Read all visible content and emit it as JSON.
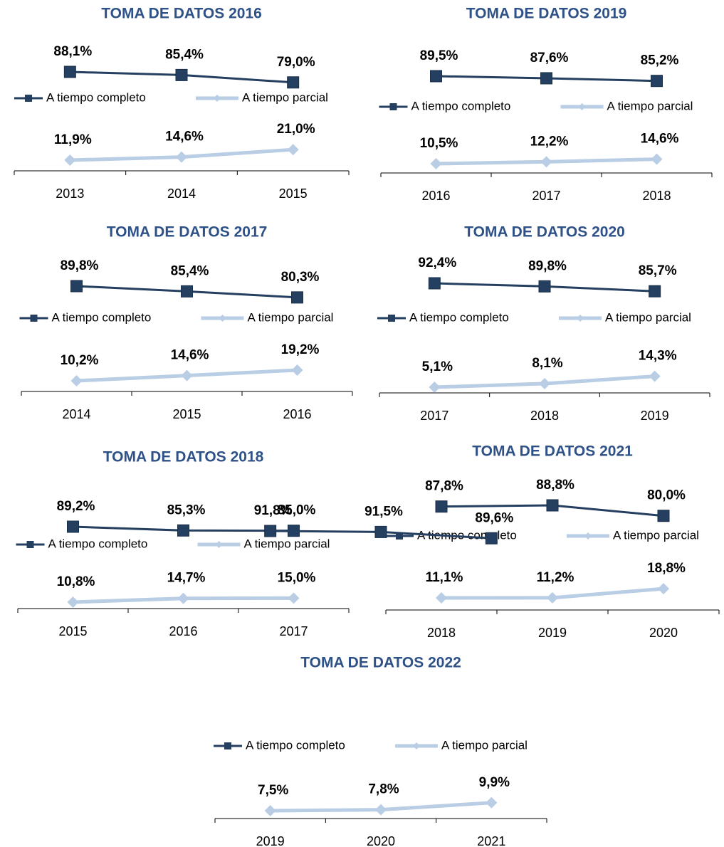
{
  "chart_data": [
    {
      "type": "line",
      "title": "TOMA DE DATOS 2016",
      "categories": [
        "2013",
        "2014",
        "2015"
      ],
      "series": [
        {
          "name": "A tiempo completo",
          "color": "#243f60",
          "marker": "square",
          "values": [
            88.1,
            85.4,
            79.0
          ],
          "value_labels": [
            "88,1%",
            "85,4%",
            "79,0%"
          ]
        },
        {
          "name": "A tiempo parcial",
          "color": "#b9cde5",
          "marker": "diamond",
          "values": [
            11.9,
            14.6,
            21.0
          ],
          "value_labels": [
            "11,9%",
            "14,6%",
            "21,0%"
          ]
        }
      ]
    },
    {
      "type": "line",
      "title": "TOMA DE DATOS 2019",
      "categories": [
        "2016",
        "2017",
        "2018"
      ],
      "series": [
        {
          "name": "A tiempo completo",
          "color": "#243f60",
          "marker": "square",
          "values": [
            89.5,
            87.6,
            85.2
          ],
          "value_labels": [
            "89,5%",
            "87,6%",
            "85,2%"
          ]
        },
        {
          "name": "A tiempo parcial",
          "color": "#b9cde5",
          "marker": "diamond",
          "values": [
            10.5,
            12.2,
            14.6
          ],
          "value_labels": [
            "10,5%",
            "12,2%",
            "14,6%"
          ]
        }
      ]
    },
    {
      "type": "line",
      "title": "TOMA DE DATOS 2017",
      "categories": [
        "2014",
        "2015",
        "2016"
      ],
      "series": [
        {
          "name": "A tiempo completo",
          "color": "#243f60",
          "marker": "square",
          "values": [
            89.8,
            85.4,
            80.3
          ],
          "value_labels": [
            "89,8%",
            "85,4%",
            "80,3%"
          ]
        },
        {
          "name": "A tiempo parcial",
          "color": "#b9cde5",
          "marker": "diamond",
          "values": [
            10.2,
            14.6,
            19.2
          ],
          "value_labels": [
            "10,2%",
            "14,6%",
            "19,2%"
          ]
        }
      ]
    },
    {
      "type": "line",
      "title": "TOMA DE DATOS 2020",
      "categories": [
        "2017",
        "2018",
        "2019"
      ],
      "series": [
        {
          "name": "A tiempo completo",
          "color": "#243f60",
          "marker": "square",
          "values": [
            92.4,
            89.8,
            85.7
          ],
          "value_labels": [
            "92,4%",
            "89,8%",
            "85,7%"
          ]
        },
        {
          "name": "A tiempo parcial",
          "color": "#b9cde5",
          "marker": "diamond",
          "values": [
            5.1,
            8.1,
            14.3
          ],
          "value_labels": [
            "5,1%",
            "8,1%",
            "14,3%"
          ]
        }
      ]
    },
    {
      "type": "line",
      "title": "TOMA DE DATOS 2018",
      "categories": [
        "2015",
        "2016",
        "2017"
      ],
      "series": [
        {
          "name": "A tiempo completo",
          "color": "#243f60",
          "marker": "square",
          "values": [
            89.2,
            85.3,
            85.0
          ],
          "value_labels": [
            "89,2%",
            "85,3%",
            "85,0%"
          ]
        },
        {
          "name": "A tiempo parcial",
          "color": "#b9cde5",
          "marker": "diamond",
          "values": [
            10.8,
            14.7,
            15.0
          ],
          "value_labels": [
            "10,8%",
            "14,7%",
            "15,0%"
          ]
        }
      ]
    },
    {
      "type": "line",
      "title": "TOMA DE DATOS 2021",
      "categories": [
        "2018",
        "2019",
        "2020"
      ],
      "series": [
        {
          "name": "A tiempo completo",
          "color": "#243f60",
          "marker": "square",
          "values": [
            87.8,
            88.8,
            80.0
          ],
          "value_labels": [
            "87,8%",
            "88,8%",
            "80,0%"
          ]
        },
        {
          "name": "A tiempo parcial",
          "color": "#b9cde5",
          "marker": "diamond",
          "values": [
            11.1,
            11.2,
            18.8
          ],
          "value_labels": [
            "11,1%",
            "11,2%",
            "18,8%"
          ]
        }
      ]
    },
    {
      "type": "line",
      "title": "TOMA DE DATOS 2022",
      "categories": [
        "2019",
        "2020",
        "2021"
      ],
      "series": [
        {
          "name": "A tiempo completo",
          "color": "#243f60",
          "marker": "square",
          "values": [
            91.8,
            91.5,
            89.6
          ],
          "value_labels": [
            "91,8%",
            "91,5%",
            "89,6%"
          ]
        },
        {
          "name": "A tiempo parcial",
          "color": "#b9cde5",
          "marker": "diamond",
          "values": [
            7.5,
            7.8,
            9.9
          ],
          "value_labels": [
            "7,5%",
            "7,8%",
            "9,9%"
          ]
        }
      ]
    }
  ]
}
